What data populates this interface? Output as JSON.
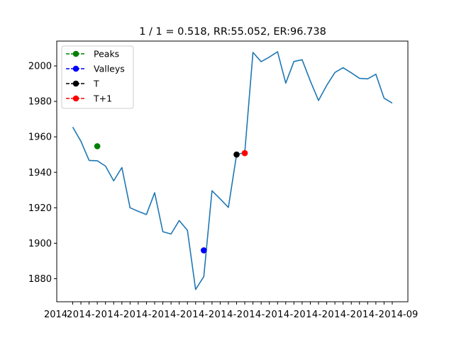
{
  "chart_data": {
    "type": "line",
    "title": "1 / 1 = 0.518, RR:55.052, ER:96.738",
    "xlabel": "",
    "ylabel": "",
    "ylim": [
      1867,
      2014
    ],
    "grid": false,
    "legend_position": "top-left",
    "yticks": [
      1880,
      1900,
      1920,
      1940,
      1960,
      1980,
      2000
    ],
    "x_tick_count": 40,
    "x_tick_labels_visible": [
      "2014",
      "-09"
    ],
    "series": [
      {
        "values": [
          1965.5,
          1957.5,
          1946.7,
          1946.5,
          1943.5,
          1935.2,
          1942.7,
          1920.0,
          1918.0,
          1916.2,
          1928.5,
          1906.5,
          1905.2,
          1912.8,
          1907.3,
          1873.9,
          1881.2,
          1929.6,
          1925.0,
          1920.2,
          1950.0,
          1951.2,
          2007.6,
          2002.4,
          2005.0,
          2008.0,
          1990.3,
          2002.5,
          2003.5,
          1991.5,
          1980.5,
          1989.0,
          1996.3,
          1999.0,
          1996.1,
          1993.0,
          1992.7,
          1995.3,
          1981.8,
          1979.0
        ],
        "color": "#1f77b4"
      }
    ],
    "markers": [
      {
        "name": "Peaks",
        "x_index": 3,
        "y": 1954.7,
        "color": "#008000"
      },
      {
        "name": "Valleys",
        "x_index": 16,
        "y": 1896.0,
        "color": "#0000ff"
      },
      {
        "name": "T",
        "x_index": 20,
        "y": 1950.0,
        "color": "#000000"
      },
      {
        "name": "T+1",
        "x_index": 21,
        "y": 1950.8,
        "color": "#ff0000"
      }
    ]
  }
}
